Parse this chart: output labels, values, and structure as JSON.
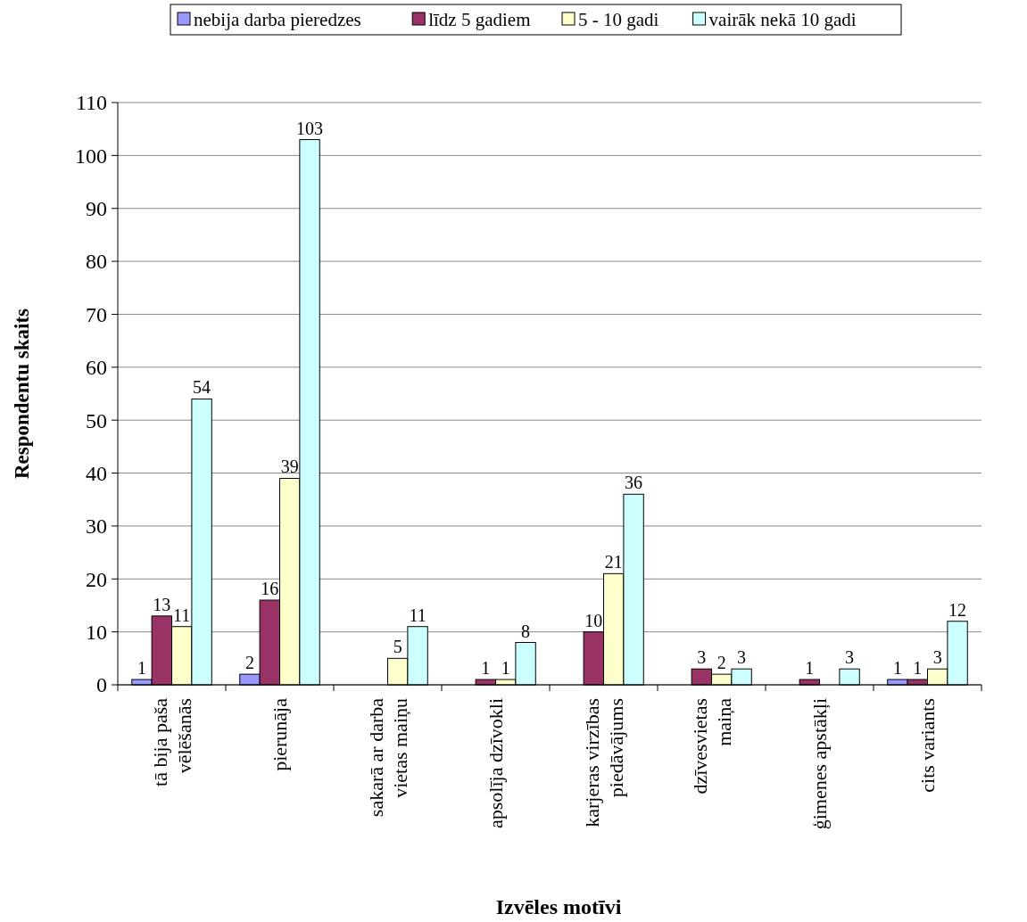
{
  "chart_data": {
    "type": "bar",
    "xlabel": "Izvēles motīvi",
    "ylabel": "Respondentu skaits",
    "categories": [
      "tā bija paša vēlēšanās",
      "pierunāja",
      "sakarā ar darba vietas maiņu",
      "apsolīja dzīvokli",
      "karjeras virzības piedāvājums",
      "dzīvesvietas maiņa",
      "ģimenes apstākļi",
      "cits variants"
    ],
    "series": [
      {
        "name": "nebija darba pieredzes",
        "color": "#9999ff",
        "values": [
          1,
          2,
          null,
          null,
          null,
          null,
          null,
          1
        ]
      },
      {
        "name": "līdz 5 gadiem",
        "color": "#993366",
        "values": [
          13,
          16,
          null,
          1,
          10,
          3,
          1,
          1
        ]
      },
      {
        "name": "5 - 10 gadi",
        "color": "#ffffcc",
        "values": [
          11,
          39,
          5,
          1,
          21,
          2,
          null,
          3
        ]
      },
      {
        "name": "vairāk nekā 10 gadi",
        "color": "#ccffff",
        "values": [
          54,
          103,
          11,
          8,
          36,
          3,
          3,
          12
        ]
      }
    ],
    "ylim": [
      0,
      110
    ],
    "yticks": [
      0,
      10,
      20,
      30,
      40,
      50,
      60,
      70,
      80,
      90,
      100,
      110
    ],
    "grid": "y",
    "legend": "top",
    "data_labels": true
  }
}
